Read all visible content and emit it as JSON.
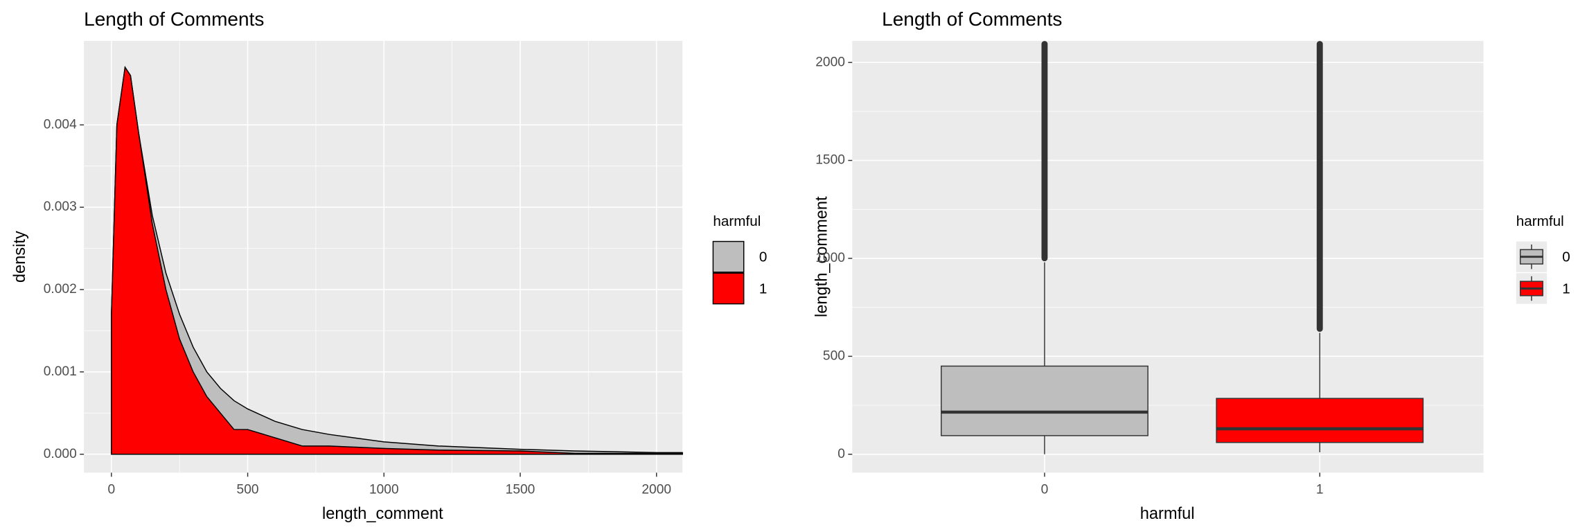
{
  "chart_data": [
    {
      "type": "area",
      "title": "Length of Comments",
      "x_label": "length_comment",
      "y_label": "density",
      "x": [
        0,
        20,
        50,
        70,
        100,
        150,
        200,
        250,
        300,
        350,
        400,
        450,
        500,
        600,
        700,
        800,
        1000,
        1200,
        1500,
        1700,
        2000,
        2095
      ],
      "series": [
        {
          "name": "0",
          "color": "#bebebe",
          "values": [
            0.0017,
            0.004,
            0.0047,
            0.0046,
            0.0039,
            0.0029,
            0.0022,
            0.0017,
            0.0013,
            0.001,
            0.0008,
            0.00065,
            0.00055,
            0.0004,
            0.0003,
            0.00024,
            0.00015,
            0.0001,
            6e-05,
            4e-05,
            2e-05,
            2e-05
          ]
        },
        {
          "name": "1",
          "color": "#ff0000",
          "values": [
            0.0017,
            0.004,
            0.0047,
            0.0046,
            0.0039,
            0.0028,
            0.002,
            0.0014,
            0.001,
            0.0007,
            0.0005,
            0.0003,
            0.0003,
            0.0002,
            0.0001,
            0.0001,
            7e-05,
            5e-05,
            4e-05,
            1e-05,
            1e-05,
            1e-05
          ]
        }
      ],
      "xlim": [
        -101,
        2095
      ],
      "ylim": [
        -0.000224,
        0.00502
      ],
      "xticks": [
        0,
        500,
        1000,
        1500,
        2000
      ],
      "yticks": [
        {
          "value": 0,
          "label": "0.000"
        },
        {
          "value": 0.001,
          "label": "0.001"
        },
        {
          "value": 0.002,
          "label": "0.002"
        },
        {
          "value": 0.003,
          "label": "0.003"
        },
        {
          "value": 0.004,
          "label": "0.004"
        }
      ],
      "legend_title": "harmful",
      "grid": true
    },
    {
      "type": "boxplot",
      "title": "Length of Comments",
      "x_label": "harmful",
      "y_label": "length_comment",
      "categories": [
        "0",
        "1"
      ],
      "boxes": [
        {
          "name": "0",
          "color": "#bebebe",
          "min": 0,
          "q1": 95,
          "median": 215,
          "q3": 450,
          "max": 980,
          "outlier_range": [
            985,
            2110
          ]
        },
        {
          "name": "1",
          "color": "#ff0000",
          "min": 10,
          "q1": 60,
          "median": 130,
          "q3": 285,
          "max": 620,
          "outlier_range": [
            625,
            2110
          ]
        }
      ],
      "ylim": [
        -94,
        2110
      ],
      "yticks": [
        0,
        500,
        1000,
        1500,
        2000
      ],
      "legend_title": "harmful",
      "grid": true
    }
  ]
}
